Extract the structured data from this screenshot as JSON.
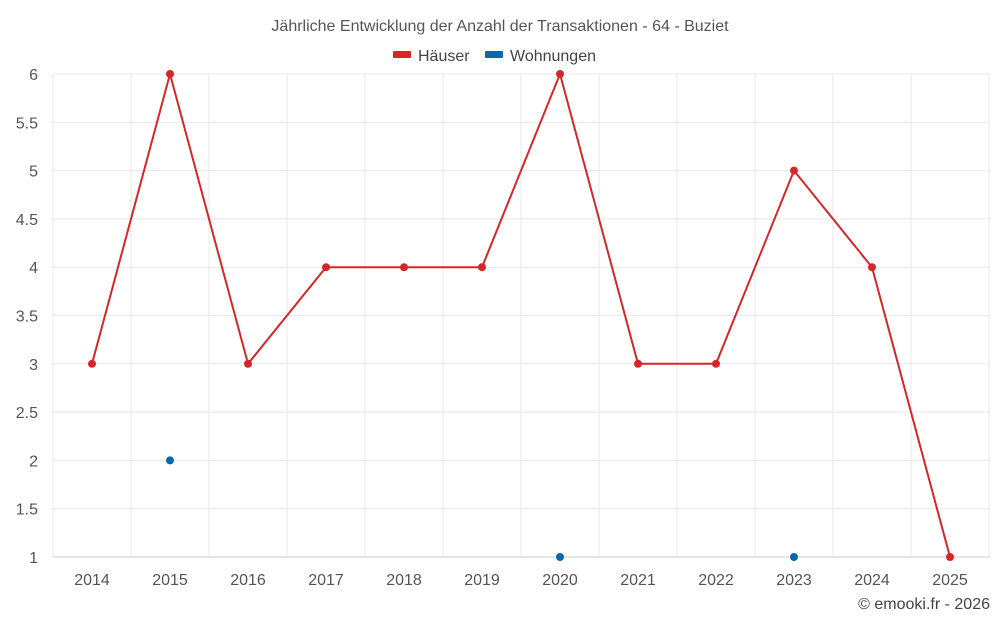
{
  "chart_data": {
    "type": "line",
    "title": "Jährliche Entwicklung der Anzahl der Transaktionen - 64 - Buziet",
    "xlabel": "",
    "ylabel": "",
    "categories": [
      "2014",
      "2015",
      "2016",
      "2017",
      "2018",
      "2019",
      "2020",
      "2021",
      "2022",
      "2023",
      "2024",
      "2025"
    ],
    "yticks": [
      "1",
      "1.5",
      "2",
      "2.5",
      "3",
      "3.5",
      "4",
      "4.5",
      "5",
      "5.5",
      "6"
    ],
    "ylim": [
      1,
      6
    ],
    "grid": true,
    "legend_position": "top-center",
    "series": [
      {
        "name": "Häuser",
        "color": "#d62728",
        "line": true,
        "values": [
          3,
          6,
          3,
          4,
          4,
          4,
          6,
          3,
          3,
          5,
          4,
          1
        ]
      },
      {
        "name": "Wohnungen",
        "color": "#0868ac",
        "line": false,
        "values": [
          null,
          2,
          null,
          null,
          null,
          null,
          1,
          null,
          null,
          1,
          null,
          null
        ]
      }
    ]
  },
  "credit": "© emooki.fr - 2026"
}
